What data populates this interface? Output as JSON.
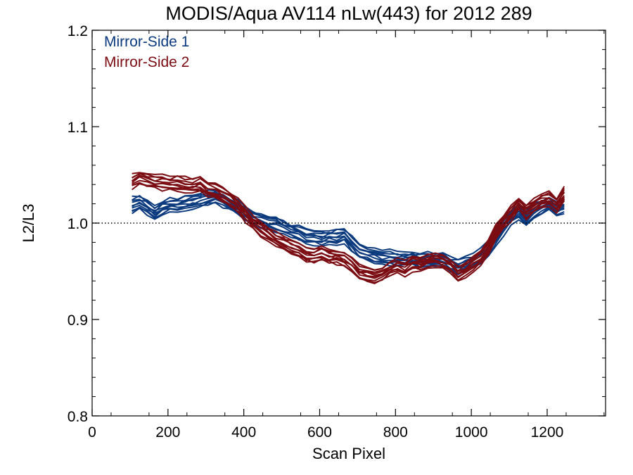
{
  "chart_data": {
    "type": "line",
    "title": "MODIS/Aqua AV114 nLw(443) for 2012 289",
    "xlabel": "Scan Pixel",
    "ylabel": "L2/L3",
    "xlim": [
      0,
      1354
    ],
    "ylim": [
      0.8,
      1.2
    ],
    "xticks": [
      0,
      200,
      400,
      600,
      800,
      1000,
      1200
    ],
    "xtick_labels": [
      "0",
      "200",
      "400",
      "600",
      "800",
      "1000",
      "1200"
    ],
    "yticks": [
      0.8,
      0.9,
      1.0,
      1.1,
      1.2
    ],
    "ytick_labels": [
      "0.8",
      "0.9",
      "1.0",
      "1.1",
      "1.2"
    ],
    "reference_line": {
      "y": 1.0,
      "style": "dotted"
    },
    "grid": false,
    "legend_position": "top-left",
    "x": [
      105,
      125,
      145,
      165,
      185,
      205,
      225,
      245,
      265,
      285,
      305,
      325,
      345,
      365,
      385,
      405,
      425,
      445,
      465,
      485,
      505,
      525,
      545,
      565,
      585,
      605,
      625,
      645,
      665,
      685,
      705,
      725,
      745,
      765,
      785,
      805,
      825,
      845,
      865,
      885,
      905,
      925,
      945,
      965,
      985,
      1005,
      1025,
      1045,
      1065,
      1085,
      1105,
      1125,
      1145,
      1165,
      1185,
      1205,
      1225,
      1245
    ],
    "series": [
      {
        "name": "Mirror-Side 1",
        "color": "#0b3a7e",
        "values": [
          1.019,
          1.021,
          1.017,
          1.011,
          1.016,
          1.019,
          1.018,
          1.021,
          1.022,
          1.024,
          1.026,
          1.027,
          1.024,
          1.02,
          1.015,
          1.01,
          1.005,
          1.002,
          1.0,
          0.998,
          0.995,
          0.992,
          0.99,
          0.986,
          0.985,
          0.984,
          0.985,
          0.986,
          0.987,
          0.978,
          0.971,
          0.968,
          0.966,
          0.965,
          0.964,
          0.963,
          0.962,
          0.963,
          0.961,
          0.962,
          0.962,
          0.961,
          0.957,
          0.955,
          0.957,
          0.96,
          0.966,
          0.973,
          0.985,
          0.995,
          1.006,
          1.012,
          1.004,
          1.012,
          1.017,
          1.02,
          1.015,
          1.018
        ]
      },
      {
        "name": "Mirror-Side 2",
        "color": "#7a0c12",
        "values": [
          1.043,
          1.047,
          1.044,
          1.043,
          1.042,
          1.041,
          1.042,
          1.04,
          1.039,
          1.041,
          1.035,
          1.033,
          1.029,
          1.024,
          1.018,
          1.009,
          1.0,
          0.994,
          0.988,
          0.983,
          0.979,
          0.975,
          0.972,
          0.967,
          0.966,
          0.969,
          0.966,
          0.965,
          0.963,
          0.957,
          0.949,
          0.947,
          0.945,
          0.947,
          0.952,
          0.955,
          0.953,
          0.958,
          0.958,
          0.961,
          0.962,
          0.96,
          0.956,
          0.948,
          0.952,
          0.958,
          0.964,
          0.974,
          0.99,
          1.001,
          1.01,
          1.02,
          1.012,
          1.018,
          1.023,
          1.025,
          1.019,
          1.03
        ]
      }
    ]
  }
}
